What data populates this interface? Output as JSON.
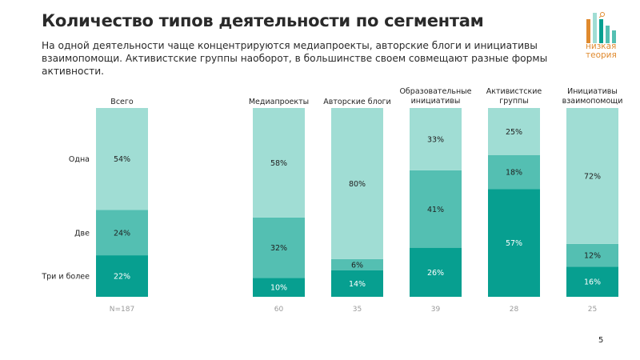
{
  "header": {
    "title": "Количество типов деятельности по сегментам",
    "subtitle": "На одной деятельности чаще концентрируются медиапроекты, авторские блоги и инициативы взаимопомощи. Активистские группы наоборот, в большинстве своем совмещают разные формы активности."
  },
  "logo": {
    "line1": "низкая",
    "line2": "теория"
  },
  "page_number": "5",
  "colors": {
    "one": "#a0ddd4",
    "two": "#54bfb2",
    "three": "#079f90",
    "brand": "#e08a2e"
  },
  "chart_data": {
    "type": "bar",
    "stacked": true,
    "percent": true,
    "categories": [
      [
        "Всего"
      ],
      [
        "Медиапроекты"
      ],
      [
        "Авторские блоги"
      ],
      [
        "Образовательные",
        "инициативы"
      ],
      [
        "Активистские",
        "группы"
      ],
      [
        "Инициативы",
        "взаимопомощи"
      ]
    ],
    "series": [
      {
        "name": "Одна",
        "values": [
          54,
          58,
          80,
          33,
          25,
          72
        ]
      },
      {
        "name": "Две",
        "values": [
          24,
          32,
          6,
          41,
          18,
          12
        ]
      },
      {
        "name": "Три и более",
        "values": [
          22,
          10,
          14,
          26,
          57,
          16
        ]
      }
    ],
    "sample_sizes": [
      "N=187",
      "60",
      "35",
      "39",
      "28",
      "25"
    ],
    "ylim": [
      0,
      100
    ]
  }
}
